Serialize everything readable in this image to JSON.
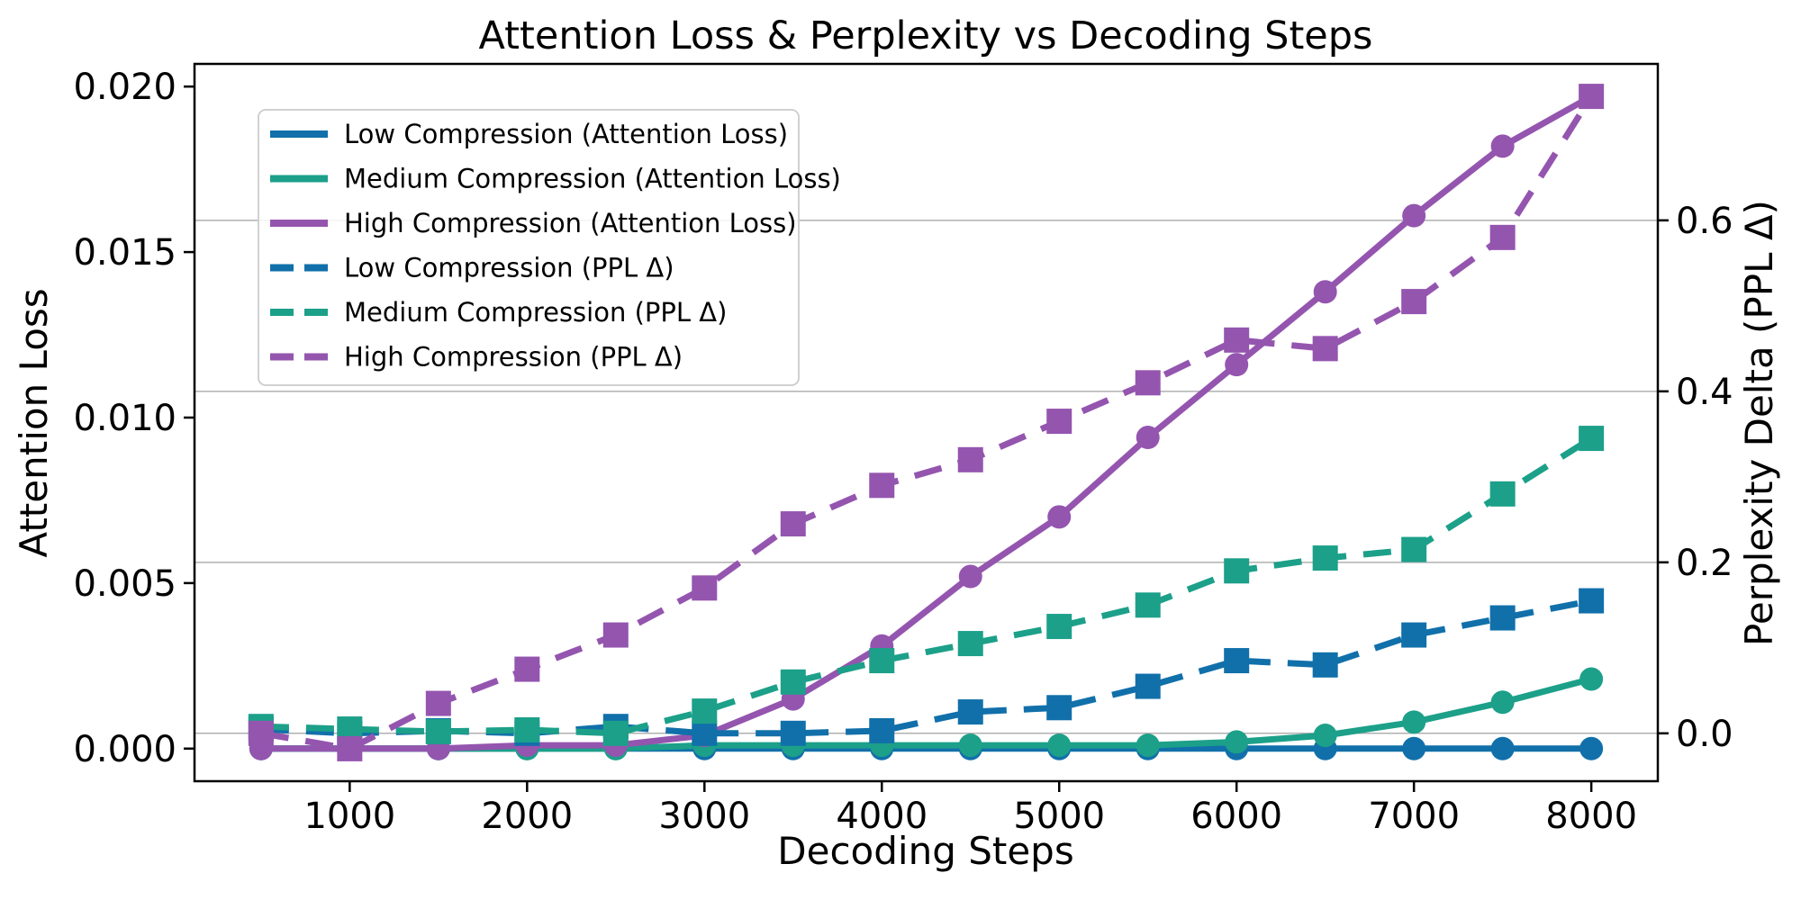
{
  "title": "Attention Loss & Perplexity vs Decoding Steps",
  "chart_data": {
    "type": "line",
    "title": "Attention Loss & Perplexity vs Decoding Steps",
    "xlabel": "Decoding Steps",
    "ylabel_left": "Attention Loss",
    "ylabel_right": "Perplexity Delta (PPL Δ)",
    "x": [
      500,
      1000,
      1500,
      2000,
      2500,
      3000,
      3500,
      4000,
      4500,
      5000,
      5500,
      6000,
      6500,
      7000,
      7500,
      8000
    ],
    "xlim": [
      125,
      8375
    ],
    "ylim_left": [
      -0.000985,
      0.020685
    ],
    "ylim_right": [
      -0.056,
      0.783
    ],
    "xticks": {
      "values": [
        1000,
        2000,
        3000,
        4000,
        5000,
        6000,
        7000,
        8000
      ],
      "labels": [
        "1000",
        "2000",
        "3000",
        "4000",
        "5000",
        "6000",
        "7000",
        "8000"
      ]
    },
    "yticks_left": {
      "values": [
        0.0,
        0.005,
        0.01,
        0.015,
        0.02
      ],
      "labels": [
        "0.000",
        "0.005",
        "0.010",
        "0.015",
        "0.020"
      ]
    },
    "yticks_right": {
      "values": [
        0.0,
        0.2,
        0.4,
        0.6
      ],
      "labels": [
        "0.0",
        "0.2",
        "0.4",
        "0.6"
      ]
    },
    "grid": "horizontal gridlines at right-axis ticks",
    "legend_position": "upper left",
    "series": [
      {
        "name": "Low Compression (Attention Loss)",
        "axis": "left",
        "style": "solid",
        "marker": "circle",
        "color_key": "blue",
        "values": [
          0.0,
          0.0,
          0.0,
          0.0,
          0.0,
          0.0,
          0.0,
          0.0,
          0.0,
          0.0,
          0.0,
          0.0,
          0.0,
          0.0,
          0.0,
          0.0
        ]
      },
      {
        "name": "Medium Compression (Attention Loss)",
        "axis": "left",
        "style": "solid",
        "marker": "circle",
        "color_key": "teal",
        "values": [
          0.0,
          0.0,
          0.0,
          0.0,
          0.0,
          0.0001,
          0.0001,
          0.0001,
          0.0001,
          0.0001,
          0.0001,
          0.0002,
          0.0004,
          0.0008,
          0.0014,
          0.0021
        ]
      },
      {
        "name": "High Compression (Attention Loss)",
        "axis": "left",
        "style": "solid",
        "marker": "circle",
        "color_key": "purple",
        "values": [
          0.0,
          0.0,
          0.0,
          0.0001,
          0.0001,
          0.0004,
          0.0015,
          0.0031,
          0.0052,
          0.007,
          0.0094,
          0.0116,
          0.0138,
          0.0161,
          0.0182,
          0.0197
        ]
      },
      {
        "name": "Low Compression (PPL Δ)",
        "axis": "right",
        "style": "dashed",
        "marker": "square",
        "color_key": "blue",
        "values": [
          0.005,
          0.0,
          0.003,
          0.0,
          0.008,
          0.0,
          0.0,
          0.003,
          0.025,
          0.03,
          0.055,
          0.085,
          0.08,
          0.115,
          0.135,
          0.155
        ]
      },
      {
        "name": "Medium Compression (PPL Δ)",
        "axis": "right",
        "style": "dashed",
        "marker": "square",
        "color_key": "teal",
        "values": [
          0.008,
          0.005,
          0.002,
          0.004,
          0.0,
          0.026,
          0.06,
          0.085,
          0.105,
          0.125,
          0.15,
          0.19,
          0.205,
          0.215,
          0.28,
          0.345
        ]
      },
      {
        "name": "High Compression (PPL Δ)",
        "axis": "right",
        "style": "dashed",
        "marker": "square",
        "color_key": "purple",
        "values": [
          0.0,
          -0.018,
          0.035,
          0.075,
          0.115,
          0.17,
          0.245,
          0.29,
          0.32,
          0.365,
          0.41,
          0.46,
          0.45,
          0.505,
          0.58,
          0.745
        ]
      }
    ],
    "legend": [
      {
        "label": "Low Compression (Attention Loss)",
        "color_key": "blue",
        "style": "solid"
      },
      {
        "label": "Medium Compression (Attention Loss)",
        "color_key": "teal",
        "style": "solid"
      },
      {
        "label": "High Compression (Attention Loss)",
        "color_key": "purple",
        "style": "solid"
      },
      {
        "label": "Low Compression (PPL Δ)",
        "color_key": "blue",
        "style": "dashed"
      },
      {
        "label": "Medium Compression (PPL Δ)",
        "color_key": "teal",
        "style": "dashed"
      },
      {
        "label": "High Compression (PPL Δ)",
        "color_key": "purple",
        "style": "dashed"
      }
    ]
  },
  "colors": {
    "blue": "#1170aa",
    "teal": "#1ca089",
    "purple": "#9455af",
    "grid": "#b0b0b0",
    "frame": "#000000",
    "legend_border": "#cccccc",
    "background": "#ffffff"
  }
}
